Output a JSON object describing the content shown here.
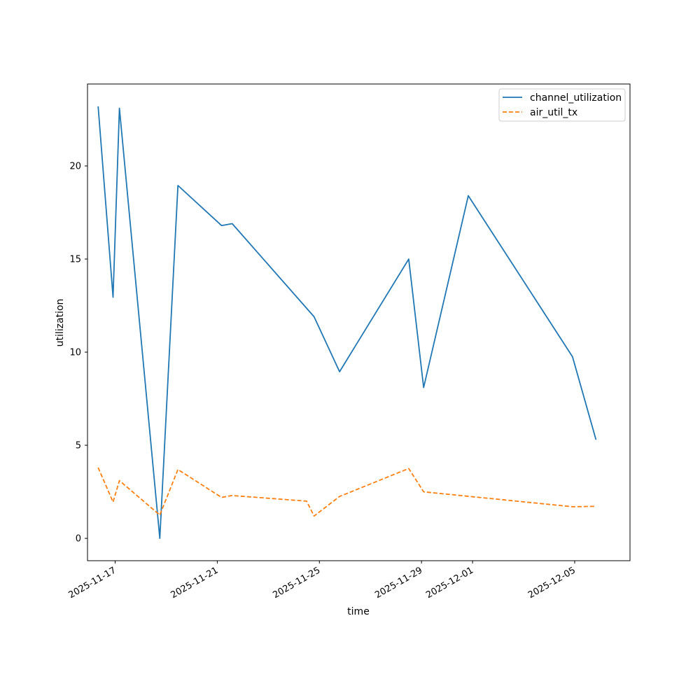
{
  "chart_data": {
    "type": "line",
    "title": "",
    "xlabel": "time",
    "ylabel": "utilization",
    "x_axis_type": "date",
    "xlim": [
      "2025-11-15T22:00",
      "2025-12-07T04:00"
    ],
    "ylim": [
      -1.2,
      24.4
    ],
    "x_ticks": [
      "2025-11-17",
      "2025-11-21",
      "2025-11-25",
      "2025-11-29",
      "2025-12-01",
      "2025-12-05"
    ],
    "y_ticks": [
      0,
      5,
      10,
      15,
      20
    ],
    "grid": false,
    "legend_position": "top-right",
    "series": [
      {
        "name": "channel_utilization",
        "color": "#1f77b4",
        "line_style": "solid",
        "points": [
          {
            "x": "2025-11-16T08:00",
            "y": 23.2
          },
          {
            "x": "2025-11-16T22:00",
            "y": 12.95
          },
          {
            "x": "2025-11-17T04:00",
            "y": 23.1
          },
          {
            "x": "2025-11-18T18:00",
            "y": 0.0
          },
          {
            "x": "2025-11-19T11:00",
            "y": 18.95
          },
          {
            "x": "2025-11-21T04:00",
            "y": 16.8
          },
          {
            "x": "2025-11-21T14:00",
            "y": 16.9
          },
          {
            "x": "2025-11-24T19:00",
            "y": 11.9
          },
          {
            "x": "2025-11-25T19:00",
            "y": 8.95
          },
          {
            "x": "2025-11-28T12:00",
            "y": 15.0
          },
          {
            "x": "2025-11-29T02:00",
            "y": 8.1
          },
          {
            "x": "2025-11-30T20:00",
            "y": 18.4
          },
          {
            "x": "2025-12-04T22:00",
            "y": 9.75
          },
          {
            "x": "2025-12-05T20:00",
            "y": 5.3
          }
        ]
      },
      {
        "name": "air_util_tx",
        "color": "#ff7f0e",
        "line_style": "dashed",
        "points": [
          {
            "x": "2025-11-16T08:00",
            "y": 3.8
          },
          {
            "x": "2025-11-16T22:00",
            "y": 1.95
          },
          {
            "x": "2025-11-17T04:00",
            "y": 3.1
          },
          {
            "x": "2025-11-18T18:00",
            "y": 1.25
          },
          {
            "x": "2025-11-19T11:00",
            "y": 3.7
          },
          {
            "x": "2025-11-21T04:00",
            "y": 2.2
          },
          {
            "x": "2025-11-21T14:00",
            "y": 2.3
          },
          {
            "x": "2025-11-24T12:00",
            "y": 2.0
          },
          {
            "x": "2025-11-24T19:00",
            "y": 1.2
          },
          {
            "x": "2025-11-25T19:00",
            "y": 2.25
          },
          {
            "x": "2025-11-28T12:00",
            "y": 3.75
          },
          {
            "x": "2025-11-29T02:00",
            "y": 2.5
          },
          {
            "x": "2025-12-04T22:00",
            "y": 1.7
          },
          {
            "x": "2025-12-05T20:00",
            "y": 1.72
          }
        ]
      }
    ]
  }
}
